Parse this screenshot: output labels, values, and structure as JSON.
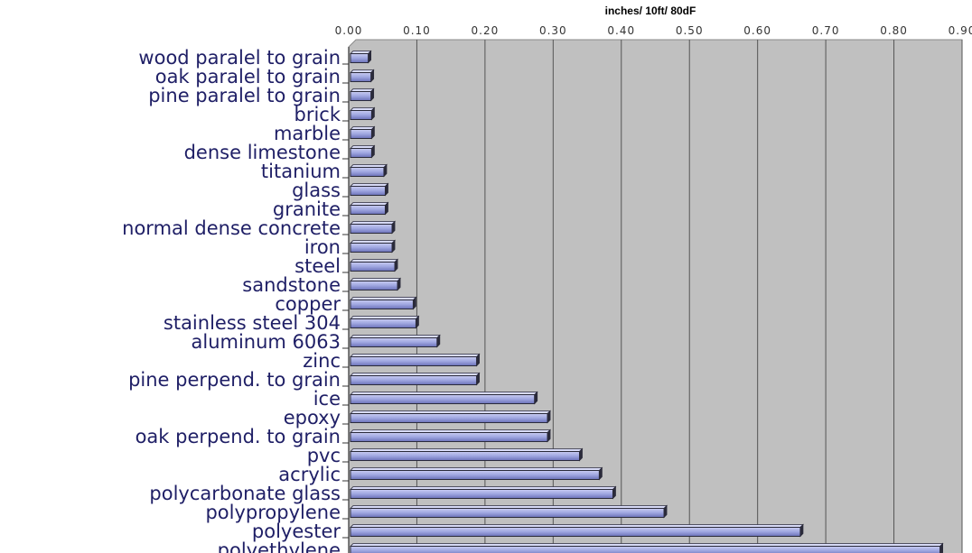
{
  "chart_data": {
    "type": "bar",
    "orientation": "horizontal",
    "title": "inches/ 10ft/ 80dF",
    "xlabel": "",
    "ylabel": "",
    "xlim": [
      0,
      0.9
    ],
    "ticks": [
      "0.00",
      "0.10",
      "0.20",
      "0.30",
      "0.40",
      "0.50",
      "0.60",
      "0.70",
      "0.80",
      "0.90"
    ],
    "grid": true,
    "legend": "none",
    "colors": {
      "bar": "#9fa6e0",
      "bar_dark": "#2a2a3a",
      "plot_bg": "#c0c0c0",
      "grid": "#555555",
      "label": "#1f1f66"
    },
    "categories": [
      "wood paralel to grain",
      "oak paralel to grain",
      "pine paralel to grain",
      "brick",
      "marble",
      "dense limestone",
      "titanium",
      "glass",
      "granite",
      "normal dense concrete",
      "iron",
      "steel",
      "sandstone",
      "copper",
      "stainless steel 304",
      "aluminum 6063",
      "zinc",
      "pine perpend. to grain",
      "ice",
      "epoxy",
      "oak perpend. to grain",
      "pvc",
      "acrylic",
      "polycarbonate glass",
      "polypropylene",
      "polyester",
      "polyethylene"
    ],
    "values": [
      0.026,
      0.03,
      0.03,
      0.031,
      0.031,
      0.031,
      0.049,
      0.051,
      0.051,
      0.061,
      0.061,
      0.065,
      0.069,
      0.092,
      0.096,
      0.127,
      0.185,
      0.185,
      0.27,
      0.289,
      0.289,
      0.336,
      0.365,
      0.385,
      0.46,
      0.66,
      0.865
    ]
  }
}
